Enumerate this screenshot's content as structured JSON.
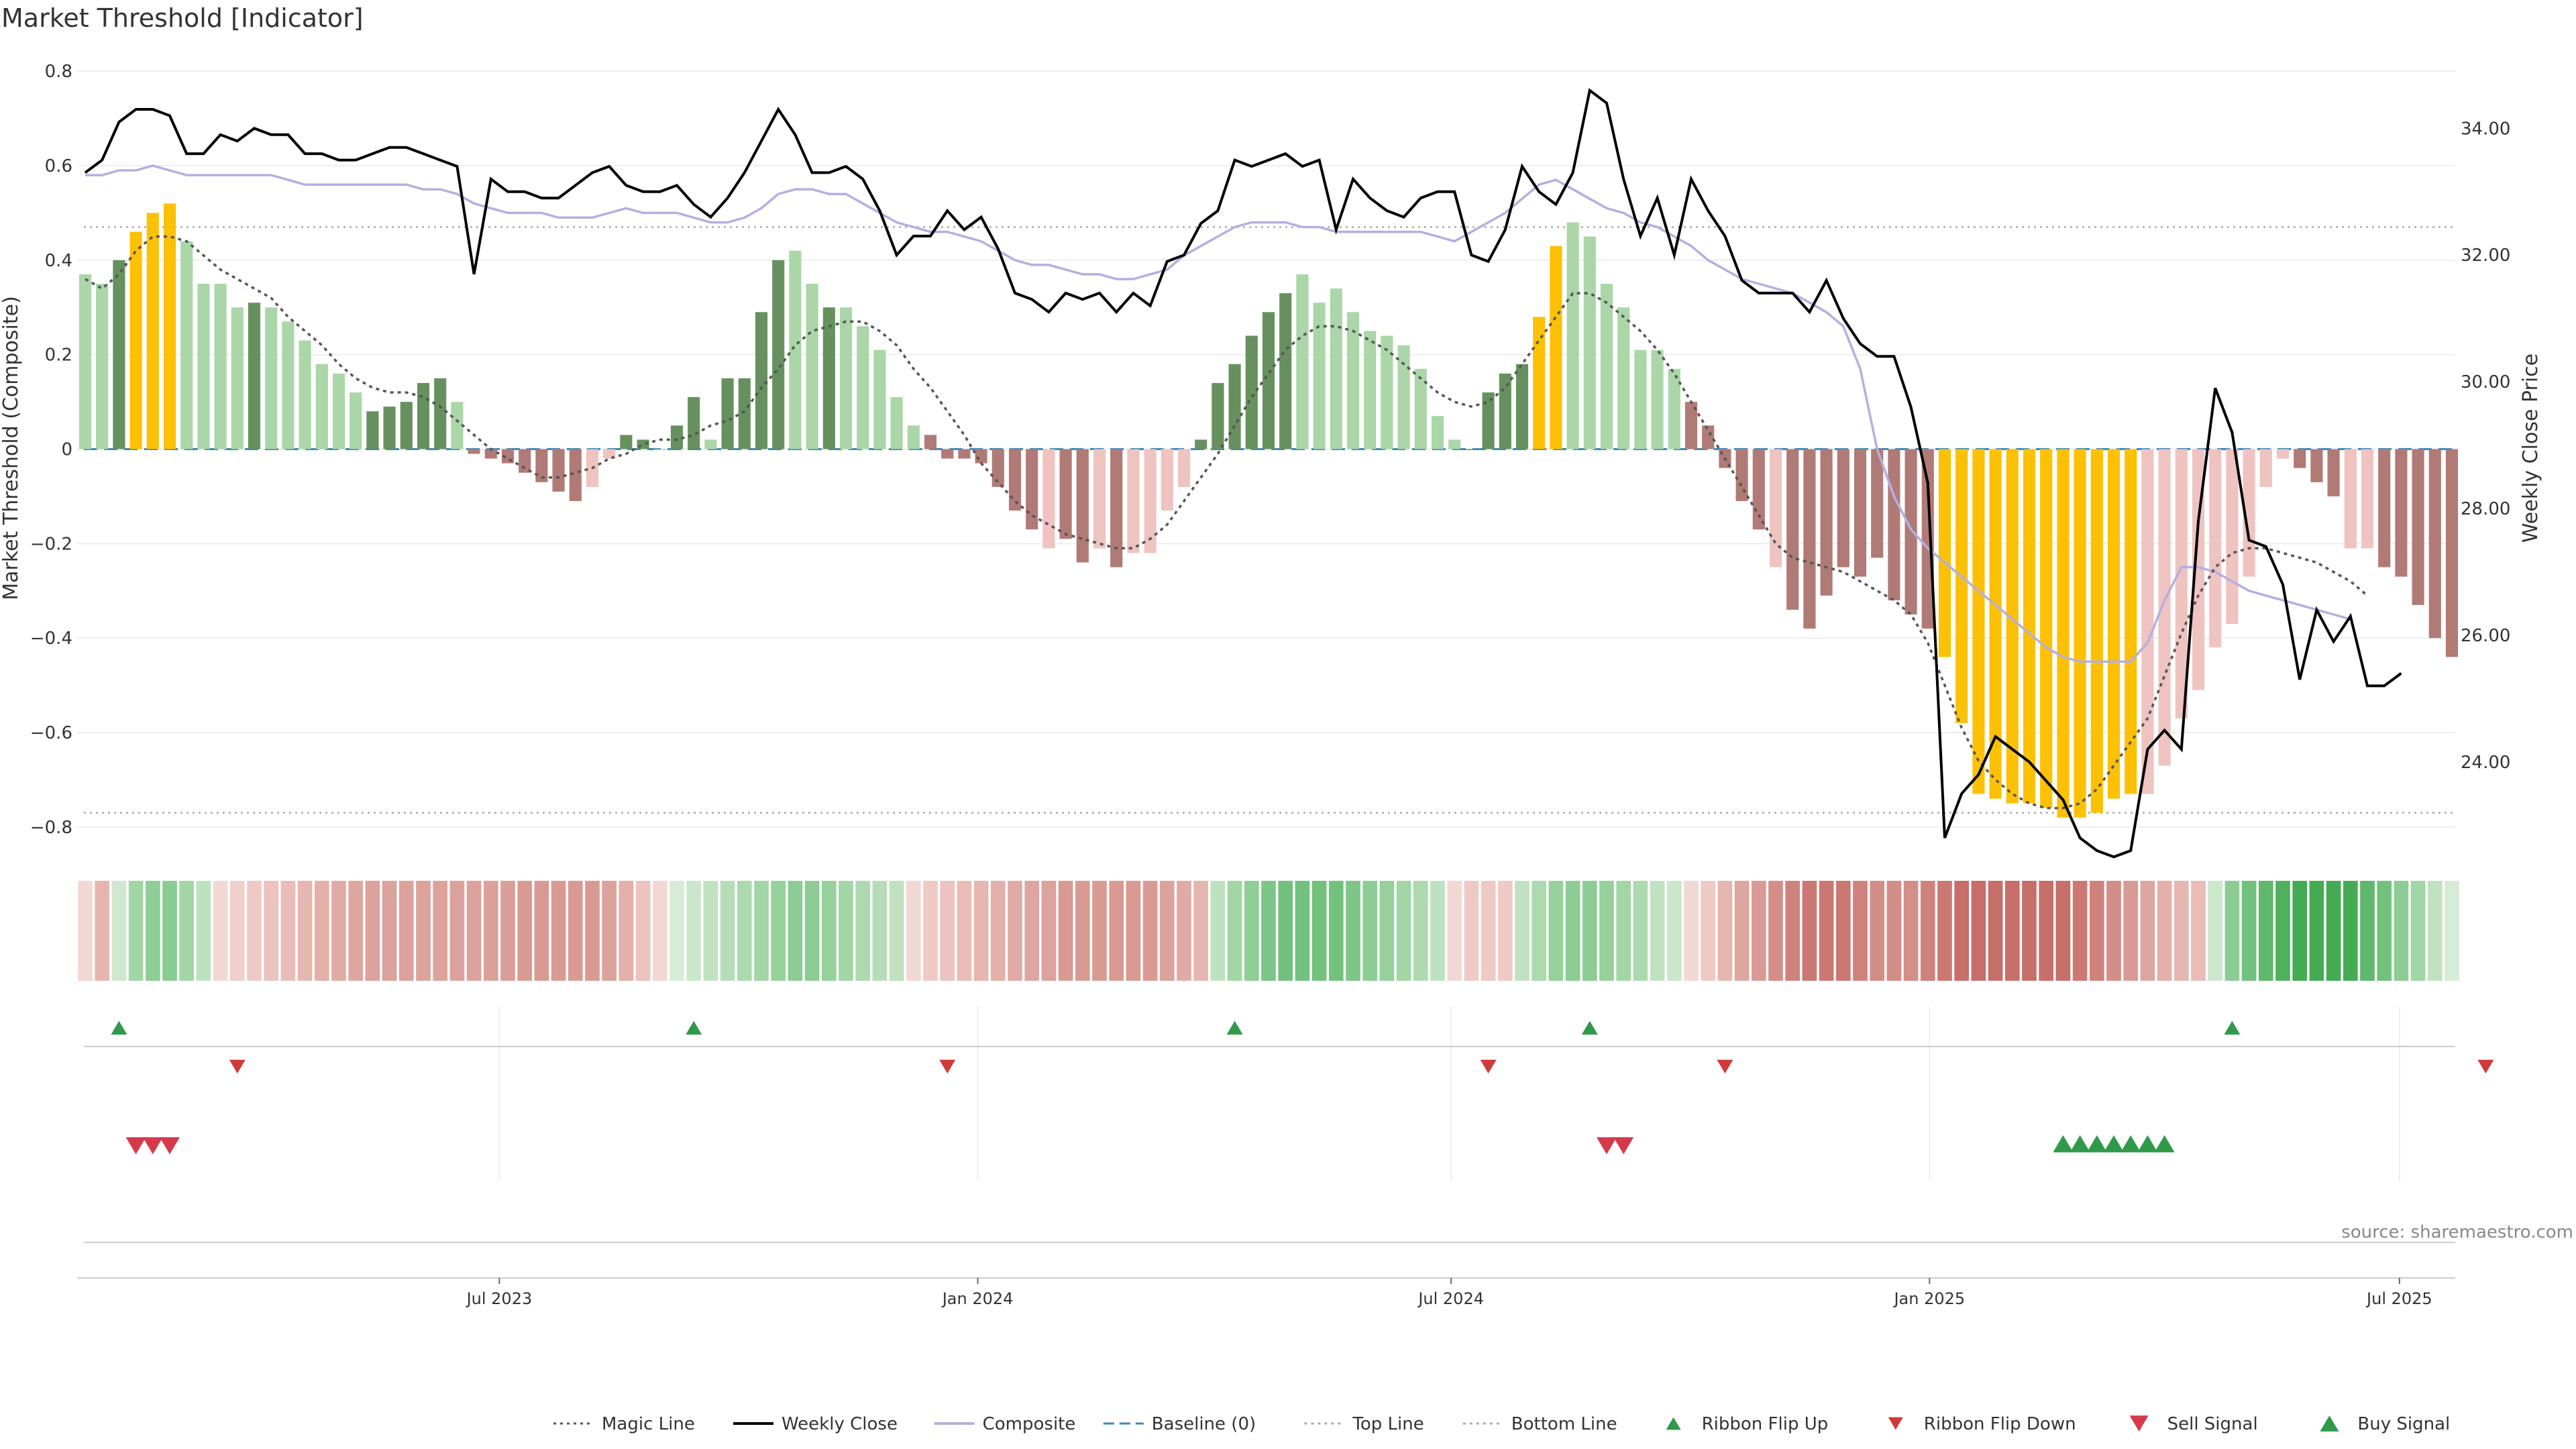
{
  "chart_data": {
    "type": "bar",
    "title": "Market Threshold [Indicator]",
    "ylabel": "Market Threshold (Composite)",
    "y2label": "Weekly Close Price",
    "source": "source: sharemaestro.com",
    "ylim": [
      -0.85,
      0.84
    ],
    "y2lim": [
      22.6,
      35.2
    ],
    "y_ticks": [
      "0.8",
      "0.6",
      "0.4",
      "0.2",
      "0",
      "−0.2",
      "−0.4",
      "−0.6",
      "−0.8"
    ],
    "y2_ticks": [
      "34.00",
      "32.00",
      "30.00",
      "28.00",
      "26.00",
      "24.00"
    ],
    "x_ticks": [
      "Jul 2023",
      "Jan 2024",
      "Jul 2024",
      "Jan 2025",
      "Jul 2025"
    ],
    "top_line": 0.47,
    "bottom_line": -0.77,
    "baseline": 0,
    "grid": true,
    "legend_position": "bottom",
    "colors": {
      "strong_green": "#66915e",
      "light_green": "#aad6a8",
      "gold": "#fcc105",
      "strong_red": "#b07a76",
      "light_red": "#eec3c0",
      "magic": "#555555",
      "close": "#000000",
      "composite": "#b6aee0",
      "baseline": "#3a8ab8",
      "flip_up": "#2e9a4a",
      "flip_down": "#d03a3a",
      "sell": "#d63a4a",
      "buy": "#2e9a4a"
    },
    "composite_bars": [
      0.37,
      0.35,
      0.4,
      0.46,
      0.5,
      0.52,
      0.44,
      0.35,
      0.35,
      0.3,
      0.31,
      0.3,
      0.27,
      0.23,
      0.18,
      0.16,
      0.12,
      0.08,
      0.09,
      0.1,
      0.14,
      0.15,
      0.1,
      -0.01,
      -0.02,
      -0.03,
      -0.05,
      -0.07,
      -0.09,
      -0.11,
      -0.08,
      -0.02,
      0.03,
      0.02,
      0.0,
      0.05,
      0.11,
      0.02,
      0.15,
      0.15,
      0.29,
      0.4,
      0.42,
      0.35,
      0.3,
      0.3,
      0.26,
      0.21,
      0.11,
      0.05,
      0.03,
      -0.02,
      -0.02,
      -0.03,
      -0.08,
      -0.13,
      -0.17,
      -0.21,
      -0.19,
      -0.24,
      -0.21,
      -0.25,
      -0.22,
      -0.22,
      -0.13,
      -0.08,
      0.02,
      0.14,
      0.18,
      0.24,
      0.29,
      0.33,
      0.37,
      0.31,
      0.34,
      0.29,
      0.25,
      0.24,
      0.22,
      0.17,
      0.07,
      0.02,
      0.0,
      0.12,
      0.16,
      0.18,
      0.28,
      0.43,
      0.48,
      0.45,
      0.35,
      0.3,
      0.21,
      0.21,
      0.17,
      0.1,
      0.05,
      -0.04,
      -0.11,
      -0.17,
      -0.25,
      -0.34,
      -0.38,
      -0.31,
      -0.25,
      -0.27,
      -0.23,
      -0.32,
      -0.35,
      -0.38,
      -0.44,
      -0.58,
      -0.73,
      -0.74,
      -0.75,
      -0.75,
      -0.76,
      -0.78,
      -0.78,
      -0.77,
      -0.74,
      -0.73,
      -0.73,
      -0.67,
      -0.57,
      -0.51,
      -0.42,
      -0.37,
      -0.27,
      -0.08,
      -0.02,
      -0.04,
      -0.07,
      -0.1,
      -0.21,
      -0.21,
      -0.25,
      -0.27,
      -0.33,
      -0.4,
      -0.44
    ],
    "bar_classes": "LLSGGGLLLLSLLLLLLSSSSSLRRRRRRRLLSSLSSLSSSSLLSLLLLLRRRRRRRLRRLRLLLLSSSSSSLLLLLLLLLLSSSSGGLLLLLLLRRRRRLRRRRRRRRRGGGGGGGGGGGGLLLLLLLLLRRRLLRRRRRR",
    "magic_line": [
      0.36,
      0.34,
      0.37,
      0.42,
      0.45,
      0.45,
      0.44,
      0.41,
      0.38,
      0.36,
      0.34,
      0.32,
      0.28,
      0.25,
      0.22,
      0.18,
      0.15,
      0.13,
      0.12,
      0.12,
      0.11,
      0.09,
      0.06,
      0.03,
      0.0,
      -0.02,
      -0.04,
      -0.06,
      -0.06,
      -0.05,
      -0.04,
      -0.02,
      -0.01,
      0.01,
      0.02,
      0.02,
      0.03,
      0.05,
      0.06,
      0.08,
      0.13,
      0.17,
      0.22,
      0.25,
      0.26,
      0.27,
      0.27,
      0.25,
      0.22,
      0.17,
      0.13,
      0.08,
      0.03,
      -0.03,
      -0.07,
      -0.11,
      -0.14,
      -0.16,
      -0.18,
      -0.19,
      -0.2,
      -0.21,
      -0.21,
      -0.19,
      -0.16,
      -0.11,
      -0.06,
      -0.01,
      0.05,
      0.11,
      0.16,
      0.21,
      0.24,
      0.26,
      0.26,
      0.25,
      0.23,
      0.21,
      0.18,
      0.15,
      0.12,
      0.1,
      0.09,
      0.1,
      0.13,
      0.18,
      0.23,
      0.28,
      0.33,
      0.33,
      0.31,
      0.28,
      0.25,
      0.21,
      0.16,
      0.1,
      0.04,
      -0.02,
      -0.08,
      -0.14,
      -0.2,
      -0.23,
      -0.24,
      -0.25,
      -0.26,
      -0.28,
      -0.3,
      -0.32,
      -0.35,
      -0.41,
      -0.5,
      -0.59,
      -0.66,
      -0.7,
      -0.73,
      -0.75,
      -0.76,
      -0.76,
      -0.75,
      -0.72,
      -0.67,
      -0.62,
      -0.57,
      -0.48,
      -0.39,
      -0.31,
      -0.25,
      -0.22,
      -0.21,
      -0.21,
      -0.22,
      -0.23,
      -0.24,
      -0.26,
      -0.28,
      -0.31
    ],
    "weekly_close": [
      33.3,
      33.5,
      34.1,
      34.3,
      34.3,
      34.2,
      33.6,
      33.6,
      33.9,
      33.8,
      34.0,
      33.9,
      33.9,
      33.6,
      33.6,
      33.5,
      33.5,
      33.6,
      33.7,
      33.7,
      33.6,
      33.5,
      33.4,
      31.7,
      33.2,
      33.0,
      33.0,
      32.9,
      32.9,
      33.1,
      33.3,
      33.4,
      33.1,
      33.0,
      33.0,
      33.1,
      32.8,
      32.6,
      32.9,
      33.3,
      33.8,
      34.3,
      33.9,
      33.3,
      33.3,
      33.4,
      33.2,
      32.7,
      32.0,
      32.3,
      32.3,
      32.7,
      32.4,
      32.6,
      32.1,
      31.4,
      31.3,
      31.1,
      31.4,
      31.3,
      31.4,
      31.1,
      31.4,
      31.2,
      31.9,
      32.0,
      32.5,
      32.7,
      33.5,
      33.4,
      33.5,
      33.6,
      33.4,
      33.5,
      32.4,
      33.2,
      32.9,
      32.7,
      32.6,
      32.9,
      33.0,
      33.0,
      32.0,
      31.9,
      32.4,
      33.4,
      33.0,
      32.8,
      33.3,
      34.6,
      34.4,
      33.2,
      32.3,
      32.9,
      32.0,
      33.2,
      32.7,
      32.3,
      31.6,
      31.4,
      31.4,
      31.4,
      31.1,
      31.6,
      31.0,
      30.6,
      30.4,
      30.4,
      29.6,
      28.4,
      22.8,
      23.5,
      23.8,
      24.4,
      24.2,
      24.0,
      23.7,
      23.4,
      22.8,
      22.6,
      22.5,
      22.6,
      24.2,
      24.5,
      24.2,
      27.8,
      29.9,
      29.2,
      27.5,
      27.4,
      26.8,
      25.3,
      26.4,
      25.9,
      26.3,
      25.2,
      25.2,
      25.4
    ],
    "composite_line": [
      0.58,
      0.58,
      0.59,
      0.59,
      0.6,
      0.59,
      0.58,
      0.58,
      0.58,
      0.58,
      0.58,
      0.58,
      0.57,
      0.56,
      0.56,
      0.56,
      0.56,
      0.56,
      0.56,
      0.56,
      0.55,
      0.55,
      0.54,
      0.52,
      0.51,
      0.5,
      0.5,
      0.5,
      0.49,
      0.49,
      0.49,
      0.5,
      0.51,
      0.5,
      0.5,
      0.5,
      0.49,
      0.48,
      0.48,
      0.49,
      0.51,
      0.54,
      0.55,
      0.55,
      0.54,
      0.54,
      0.52,
      0.5,
      0.48,
      0.47,
      0.46,
      0.46,
      0.45,
      0.44,
      0.42,
      0.4,
      0.39,
      0.39,
      0.38,
      0.37,
      0.37,
      0.36,
      0.36,
      0.37,
      0.38,
      0.41,
      0.43,
      0.45,
      0.47,
      0.48,
      0.48,
      0.48,
      0.47,
      0.47,
      0.46,
      0.46,
      0.46,
      0.46,
      0.46,
      0.46,
      0.45,
      0.44,
      0.46,
      0.48,
      0.5,
      0.53,
      0.56,
      0.57,
      0.55,
      0.53,
      0.51,
      0.5,
      0.48,
      0.47,
      0.45,
      0.43,
      0.4,
      0.38,
      0.36,
      0.35,
      0.34,
      0.33,
      0.31,
      0.29,
      0.26,
      0.17,
      0.0,
      -0.1,
      -0.17,
      -0.21,
      -0.24,
      -0.27,
      -0.3,
      -0.33,
      -0.36,
      -0.39,
      -0.42,
      -0.44,
      -0.45,
      -0.45,
      -0.45,
      -0.45,
      -0.41,
      -0.32,
      -0.25,
      -0.25,
      -0.26,
      -0.28,
      -0.3,
      -0.31,
      -0.32,
      -0.33,
      -0.34,
      -0.35,
      -0.36
    ],
    "ribbon": [
      "#f2d8d4",
      "#e7b5b0",
      "#cfe8cf",
      "#a2d6a5",
      "#8dcf94",
      "#88cc92",
      "#a2d6a5",
      "#bde2bf",
      "#f2d8d4",
      "#f0d0cc",
      "#efcac5",
      "#ecc3be",
      "#e9bcb7",
      "#e6b6b0",
      "#e3b0aa",
      "#e0aba5",
      "#dea6a0",
      "#dca29c",
      "#dca29c",
      "#dca29c",
      "#dca29c",
      "#dca29c",
      "#dca29c",
      "#dca29c",
      "#dba09a",
      "#db9f99",
      "#d99a94",
      "#d99a94",
      "#d99a94",
      "#d99a94",
      "#d99a94",
      "#dca29c",
      "#e3b0aa",
      "#ecc3be",
      "#f2d8d4",
      "#d6ecd6",
      "#cbe7cb",
      "#c0e2c1",
      "#b6ddb8",
      "#acd9af",
      "#a2d6a5",
      "#96d09b",
      "#8dcc94",
      "#8dcc94",
      "#96d09b",
      "#a2d6a5",
      "#acd9af",
      "#b6ddb8",
      "#c0e2c1",
      "#f2d8d4",
      "#efcac5",
      "#ecc3be",
      "#e9bcb7",
      "#e6b6b0",
      "#e3b0aa",
      "#e0aba5",
      "#dea6a0",
      "#dca29c",
      "#d99a94",
      "#d99a94",
      "#d99a94",
      "#d99a94",
      "#d99a94",
      "#d99a94",
      "#dca29c",
      "#e0aba5",
      "#e6b6b0",
      "#bde2bf",
      "#a2d6a5",
      "#8dcf94",
      "#7dc687",
      "#72c17d",
      "#72c17d",
      "#72c17d",
      "#72c17d",
      "#7dc687",
      "#8dcc94",
      "#96d09b",
      "#a2d6a5",
      "#acd9af",
      "#bde2bf",
      "#f2d8d4",
      "#efcac5",
      "#efcac5",
      "#efcac5",
      "#c0e2c1",
      "#acd9af",
      "#96d09b",
      "#8dcc94",
      "#8dcc94",
      "#96d09b",
      "#a2d6a5",
      "#acd9af",
      "#c0e2c1",
      "#cbe7cb",
      "#f2d8d4",
      "#efcac5",
      "#e6b6b0",
      "#dea6a0",
      "#d99a94",
      "#d48e88",
      "#cf827c",
      "#cb7873",
      "#cb7873",
      "#cb7873",
      "#cf827c",
      "#d48e88",
      "#d48e88",
      "#d48e88",
      "#cf827c",
      "#cb7873",
      "#c86e69",
      "#c86e69",
      "#c86e69",
      "#c86e69",
      "#c86e69",
      "#c86e69",
      "#c86e69",
      "#cb7873",
      "#cf827c",
      "#d48e88",
      "#d99a94",
      "#dea6a0",
      "#e3b0aa",
      "#e6b6b0",
      "#e9bcb7",
      "#cbe7cb",
      "#8dcc94",
      "#72c17d",
      "#5fb86c",
      "#4fb05d",
      "#45ab53",
      "#45ab53",
      "#45ab53",
      "#45ab53",
      "#5fb86c",
      "#72c17d",
      "#8dcc94",
      "#a2d6a5",
      "#c0e2c1",
      "#d6ecd6"
    ],
    "ribbon_flip_up_idx": [
      2,
      36,
      68,
      89,
      127
    ],
    "ribbon_flip_down_idx": [
      9,
      51,
      83,
      97,
      142
    ],
    "sell_signal_idx": [
      3,
      4,
      5,
      90,
      91
    ],
    "buy_signal_idx": [
      117,
      118,
      119,
      120,
      121,
      122,
      123
    ],
    "legend": [
      {
        "label": "Magic Line",
        "kind": "dotted",
        "color": "#555555"
      },
      {
        "label": "Weekly Close",
        "kind": "solid",
        "color": "#000000"
      },
      {
        "label": "Composite",
        "kind": "solid",
        "color": "#b6aee0"
      },
      {
        "label": "Baseline (0)",
        "kind": "dashed",
        "color": "#3a8ab8"
      },
      {
        "label": "Top Line",
        "kind": "dotted",
        "color": "#aaaaaa"
      },
      {
        "label": "Bottom Line",
        "kind": "dotted",
        "color": "#aaaaaa"
      },
      {
        "label": "Ribbon Flip Up",
        "kind": "tri-up-small",
        "color": "#2e9a4a"
      },
      {
        "label": "Ribbon Flip Down",
        "kind": "tri-down-small",
        "color": "#d03a3a"
      },
      {
        "label": "Sell Signal",
        "kind": "tri-down",
        "color": "#d63a4a"
      },
      {
        "label": "Buy Signal",
        "kind": "tri-up",
        "color": "#2e9a4a"
      }
    ]
  }
}
